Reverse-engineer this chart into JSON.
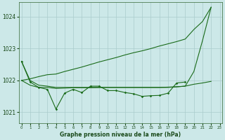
{
  "background_color": "#cce8e8",
  "plot_bg_color": "#cce8e8",
  "grid_color": "#aacccc",
  "line_color": "#1a6b1a",
  "xlabel": "Graphe pression niveau de la mer (hPa)",
  "ylim": [
    1020.65,
    1024.45
  ],
  "yticks": [
    1021,
    1022,
    1023,
    1024
  ],
  "xticks": [
    0,
    1,
    2,
    3,
    4,
    5,
    6,
    7,
    8,
    9,
    10,
    11,
    12,
    13,
    14,
    15,
    16,
    17,
    18,
    19,
    20,
    21,
    22,
    23
  ],
  "line_diagonal": [
    1022.0,
    1022.05,
    1022.12,
    1022.18,
    1022.2,
    1022.28,
    1022.35,
    1022.42,
    1022.5,
    1022.58,
    1022.65,
    1022.72,
    1022.8,
    1022.87,
    1022.93,
    1023.0,
    1023.08,
    1023.15,
    1023.22,
    1023.3,
    1023.6,
    1023.85,
    1024.3
  ],
  "line_flat": [
    1022.0,
    1021.85,
    1021.78,
    1021.78,
    1021.75,
    1021.76,
    1021.77,
    1021.77,
    1021.77,
    1021.78,
    1021.78,
    1021.78,
    1021.78,
    1021.78,
    1021.78,
    1021.78,
    1021.78,
    1021.79,
    1021.8,
    1021.82,
    1021.88,
    1021.92,
    1021.97
  ],
  "line_sharp_up": [
    1022.6,
    1022.0,
    1021.85,
    1021.82,
    1021.78,
    1021.78,
    1021.78,
    1021.78,
    1021.78,
    1021.78,
    1021.78,
    1021.78,
    1021.78,
    1021.78,
    1021.78,
    1021.78,
    1021.78,
    1021.78,
    1021.8,
    1021.82,
    1022.28,
    1023.25,
    1024.3
  ],
  "line_zigzag": [
    1022.6,
    1021.95,
    1021.78,
    1021.72,
    1021.1,
    1021.6,
    1021.72,
    1021.62,
    1021.82,
    1021.82,
    1021.68,
    1021.68,
    1021.62,
    1021.58,
    1021.5,
    1021.52,
    1021.53,
    1021.6,
    1021.92,
    1021.95,
    null,
    null,
    null
  ]
}
